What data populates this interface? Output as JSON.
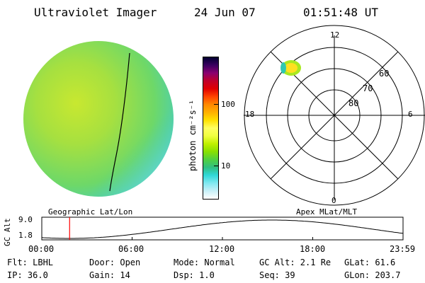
{
  "header": {
    "instrument": "Ultraviolet Imager",
    "date": "24 Jun 07",
    "time": "01:51:48 UT"
  },
  "colorbar": {
    "unit_label": "photon cm⁻²s⁻¹",
    "tick_100": "100",
    "tick_10": "10",
    "colors": [
      "#000030",
      "#3a0060",
      "#8a0070",
      "#c0002a",
      "#e00000",
      "#ff4400",
      "#ff8800",
      "#ffb000",
      "#ffe000",
      "#ffff60",
      "#f0ff40",
      "#c0f000",
      "#88e000",
      "#50d040",
      "#30c080",
      "#30d8d8",
      "#80e8f0",
      "#c8f0f8",
      "#ffffff"
    ]
  },
  "polar_plot": {
    "label_12": "12",
    "label_0": "0",
    "label_18": "18",
    "label_6": "6",
    "lat_60": "60",
    "lat_70": "70",
    "lat_80": "80",
    "coord_label": "Apex MLat/MLT"
  },
  "orbit_plot": {
    "ylabel": "GC Alt",
    "y_top": "9.0",
    "y_bottom": "1.8",
    "coord_label": "Geographic Lat/Lon",
    "ticks": [
      "00:00",
      "06:00",
      "12:00",
      "18:00",
      "23:59"
    ],
    "current_time_fraction": 0.077
  },
  "status": {
    "flt": "Flt: LBHL",
    "ip": "IP: 36.0",
    "door": "Door: Open",
    "gain": "Gain: 14",
    "mode": "Mode: Normal",
    "dsp": "Dsp:    1.0",
    "gcalt": "GC Alt: 2.1 Re",
    "seq": "Seq: 39",
    "glat": "GLat:  61.6",
    "glon": "GLon: 203.7"
  }
}
